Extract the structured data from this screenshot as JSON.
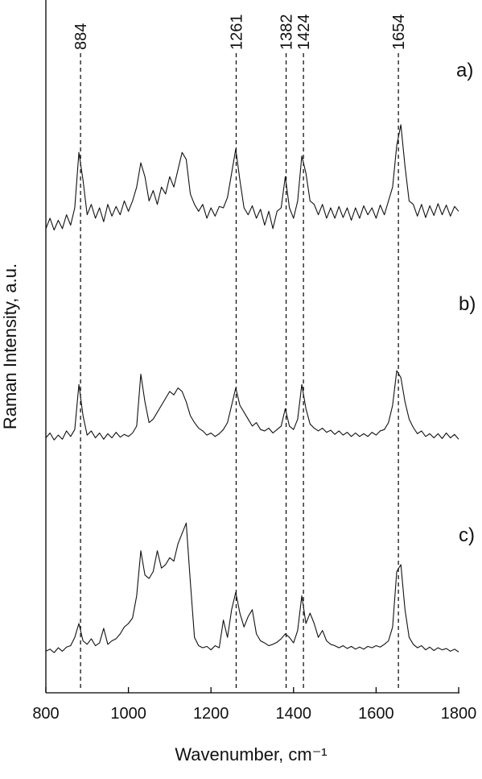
{
  "chart_data": {
    "type": "line",
    "x_label": "Wavenumber, cm⁻¹",
    "y_label": "Raman Intensity, a.u.",
    "xlim": [
      800,
      1800
    ],
    "xticks": [
      800,
      1000,
      1200,
      1400,
      1600,
      1800
    ],
    "ylim": [
      0,
      100
    ],
    "peak_lines": [
      884,
      1261,
      1382,
      1424,
      1654
    ],
    "x": [
      800,
      810,
      820,
      830,
      840,
      850,
      860,
      870,
      880,
      890,
      900,
      910,
      920,
      930,
      940,
      950,
      960,
      970,
      980,
      990,
      1000,
      1010,
      1020,
      1030,
      1040,
      1050,
      1060,
      1070,
      1080,
      1090,
      1100,
      1110,
      1120,
      1130,
      1140,
      1150,
      1160,
      1170,
      1180,
      1190,
      1200,
      1210,
      1220,
      1230,
      1240,
      1250,
      1260,
      1270,
      1280,
      1290,
      1300,
      1310,
      1320,
      1330,
      1340,
      1350,
      1360,
      1370,
      1380,
      1390,
      1400,
      1410,
      1420,
      1430,
      1440,
      1450,
      1460,
      1470,
      1480,
      1490,
      1500,
      1510,
      1520,
      1530,
      1540,
      1550,
      1560,
      1570,
      1580,
      1590,
      1600,
      1610,
      1620,
      1630,
      1640,
      1650,
      1660,
      1670,
      1680,
      1690,
      1700,
      1710,
      1720,
      1730,
      1740,
      1750,
      1760,
      1770,
      1780,
      1790,
      1800
    ],
    "series": [
      {
        "name": "a)",
        "color": "#111111",
        "values": [
          67,
          68.5,
          66.8,
          68.2,
          67,
          69,
          67.5,
          70,
          78,
          74,
          69,
          70.5,
          68.5,
          70,
          68,
          70.5,
          68.8,
          70.2,
          69,
          71,
          69.5,
          71,
          73,
          76.5,
          74.5,
          71,
          72.5,
          70.5,
          73,
          72,
          74.5,
          73,
          75.5,
          78,
          77,
          72,
          70.5,
          69.5,
          70.5,
          68.5,
          70,
          68.8,
          70.2,
          70,
          71.5,
          75,
          78.5,
          74,
          70,
          69,
          70.3,
          68.5,
          69.8,
          67.5,
          69.5,
          67,
          69.5,
          70,
          74.5,
          70,
          68.5,
          71,
          77.5,
          75,
          71,
          70.5,
          69,
          70.5,
          68.5,
          70,
          68.5,
          70.2,
          68.6,
          70,
          68.2,
          70,
          68.5,
          70.3,
          69,
          70,
          68.5,
          70.4,
          69,
          71,
          73,
          79,
          82,
          76,
          71,
          70.5,
          68.8,
          70.5,
          68.6,
          70.3,
          68.9,
          70.6,
          69,
          70.4,
          68.8,
          70.2,
          69.5
        ]
      },
      {
        "name": "b)",
        "color": "#111111",
        "values": [
          36.8,
          37.5,
          36.5,
          37.2,
          36.6,
          37.8,
          37,
          38,
          44.5,
          40,
          37.2,
          37.8,
          36.8,
          37.5,
          36.6,
          37.4,
          36.8,
          37.6,
          36.9,
          37.3,
          37,
          37.5,
          38.5,
          46,
          42,
          39,
          39.5,
          40.5,
          41.5,
          42.5,
          43.5,
          43,
          44,
          43.5,
          42,
          40,
          39,
          38.2,
          37.8,
          37.2,
          37.5,
          37,
          37.4,
          38,
          39,
          41.5,
          44,
          41.5,
          40.5,
          39.5,
          38.5,
          39,
          38,
          37.8,
          38.2,
          37.5,
          38,
          38.5,
          41,
          38.5,
          38,
          39.5,
          44.5,
          41,
          38.8,
          38.2,
          37.8,
          38.2,
          37.6,
          37.9,
          37.3,
          37.8,
          37.2,
          37.6,
          37,
          37.5,
          37,
          37.4,
          37,
          37.6,
          37.2,
          37.8,
          38,
          39,
          41.5,
          46.5,
          45.5,
          42,
          39.5,
          38.3,
          37.4,
          37.8,
          37,
          37.4,
          36.8,
          37.4,
          36.7,
          37.5,
          36.8,
          37.3,
          36.6
        ]
      },
      {
        "name": "c)",
        "color": "#111111",
        "values": [
          6,
          6.3,
          5.8,
          6.5,
          6,
          6.6,
          6.8,
          8,
          10,
          7.5,
          7,
          7.8,
          6.8,
          7.2,
          9.3,
          7,
          7.5,
          7.8,
          8.5,
          9.5,
          10,
          10.8,
          14,
          20.5,
          17,
          16.5,
          17.5,
          20.5,
          18,
          18.5,
          19.5,
          19,
          21.5,
          23,
          24.5,
          16,
          8,
          6.8,
          6.5,
          6.7,
          6.2,
          6.8,
          6.5,
          10.5,
          8,
          12,
          14.5,
          11.5,
          9.5,
          11,
          12,
          8.5,
          7.5,
          7.2,
          6.8,
          7,
          7.3,
          7.8,
          8.5,
          8,
          7.2,
          9,
          14,
          10,
          11.5,
          10,
          8,
          9,
          7.5,
          7,
          6.8,
          6.5,
          6.8,
          6.4,
          6.7,
          6.3,
          6.6,
          6.3,
          6.7,
          6.5,
          6.8,
          6.6,
          7,
          7.5,
          9.5,
          17.5,
          18.5,
          12,
          8,
          7,
          6.5,
          6.8,
          6.2,
          6.6,
          6.1,
          6.5,
          6.2,
          6.4,
          6,
          6.3,
          5.9
        ]
      }
    ]
  }
}
